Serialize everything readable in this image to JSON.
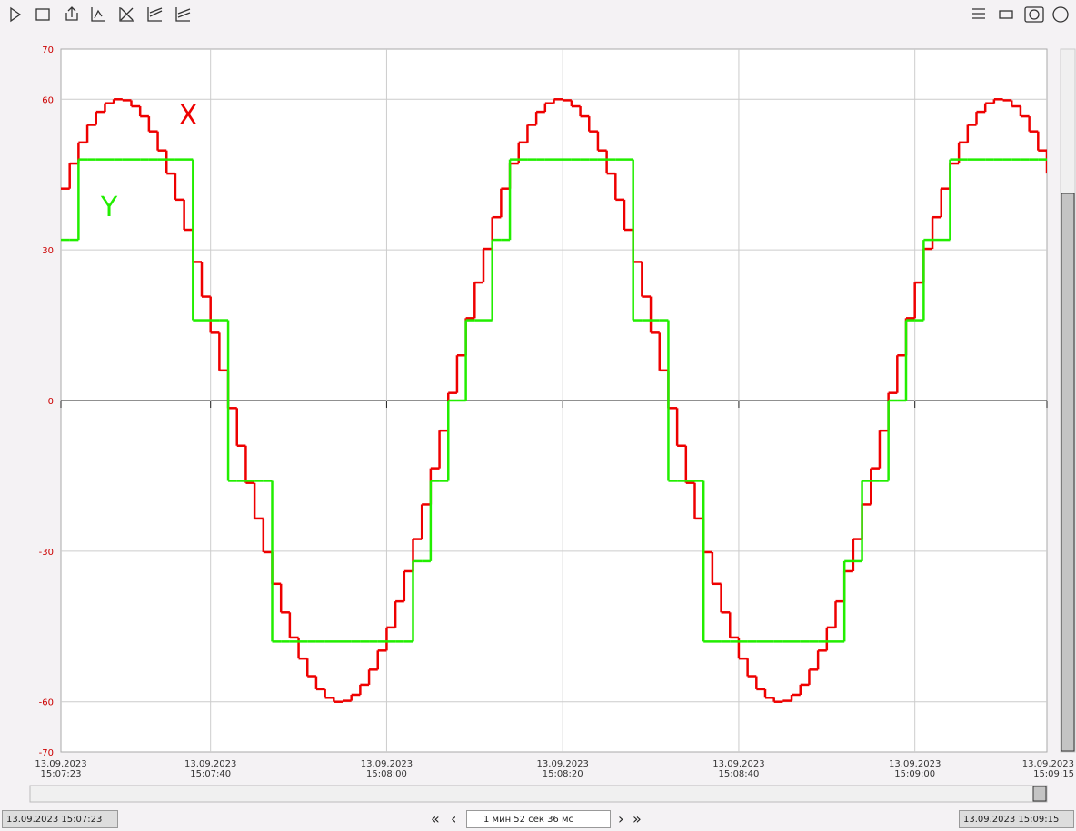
{
  "chart_data": {
    "type": "step-line",
    "x": [
      0,
      1,
      2,
      3,
      4,
      5,
      6,
      7,
      8,
      9,
      10,
      11,
      12,
      13,
      14,
      15,
      16,
      17,
      18,
      19,
      20,
      21,
      22,
      23,
      24,
      25,
      26,
      27,
      28,
      29,
      30,
      31,
      32,
      33,
      34,
      35,
      36,
      37,
      38,
      39,
      40,
      41,
      42,
      43,
      44,
      45,
      46,
      47,
      48,
      49,
      50,
      51,
      52,
      53,
      54,
      55,
      56,
      57,
      58,
      59,
      60,
      61,
      62,
      63,
      64,
      65,
      66,
      67,
      68,
      69,
      70,
      71,
      72,
      73,
      74,
      75,
      76,
      77,
      78,
      79,
      80,
      81,
      82,
      83,
      84,
      85,
      86,
      87,
      88,
      89,
      90,
      91,
      92,
      93,
      94,
      95,
      96,
      97,
      98,
      99,
      100,
      101,
      102,
      103,
      104,
      105,
      106,
      107,
      108,
      109,
      110,
      111,
      112
    ],
    "series": [
      {
        "name": "X",
        "color": "#ee0000",
        "values": [
          42.2,
          47.2,
          51.4,
          54.9,
          57.5,
          59.2,
          60,
          59.8,
          58.6,
          56.6,
          53.6,
          49.8,
          45.2,
          40,
          34,
          27.6,
          20.7,
          13.5,
          6,
          -1.5,
          -9,
          -16.4,
          -23.5,
          -30.2,
          -36.5,
          -42.2,
          -47.2,
          -51.4,
          -54.9,
          -57.5,
          -59.2,
          -60,
          -59.8,
          -58.6,
          -56.6,
          -53.6,
          -49.8,
          -45.2,
          -40,
          -34,
          -27.6,
          -20.7,
          -13.5,
          -6,
          1.5,
          9,
          16.4,
          23.5,
          30.2,
          36.5,
          42.2,
          47.2,
          51.4,
          54.9,
          57.5,
          59.2,
          60,
          59.8,
          58.6,
          56.6,
          53.6,
          49.8,
          45.2,
          40,
          34,
          27.6,
          20.7,
          13.5,
          6,
          -1.5,
          -9,
          -16.4,
          -23.5,
          -30.2,
          -36.5,
          -42.2,
          -47.2,
          -51.4,
          -54.9,
          -57.5,
          -59.2,
          -60,
          -59.8,
          -58.6,
          -56.6,
          -53.6,
          -49.8,
          -45.2,
          -40,
          -34,
          -27.6,
          -20.7,
          -13.5,
          -6,
          1.5,
          9,
          16.4,
          23.5,
          30.2,
          36.5,
          42.2,
          47.2,
          51.4,
          54.9,
          57.5,
          59.2,
          60,
          59.8,
          58.6,
          56.6,
          53.6,
          49.8,
          45.2
        ]
      },
      {
        "name": "Y",
        "color": "#22ee00",
        "values": [
          32,
          32,
          48,
          48,
          48,
          48,
          48,
          48,
          48,
          48,
          48,
          48,
          48,
          48,
          48,
          16,
          16,
          16,
          16,
          -16,
          -16,
          -16,
          -16,
          -16,
          -48,
          -48,
          -48,
          -48,
          -48,
          -48,
          -48,
          -48,
          -48,
          -48,
          -48,
          -48,
          -48,
          -48,
          -48,
          -48,
          -32,
          -32,
          -16,
          -16,
          0,
          0,
          16,
          16,
          16,
          32,
          32,
          48,
          48,
          48,
          48,
          48,
          48,
          48,
          48,
          48,
          48,
          48,
          48,
          48,
          48,
          16,
          16,
          16,
          16,
          -16,
          -16,
          -16,
          -16,
          -48,
          -48,
          -48,
          -48,
          -48,
          -48,
          -48,
          -48,
          -48,
          -48,
          -48,
          -48,
          -48,
          -48,
          -48,
          -48,
          -32,
          -32,
          -16,
          -16,
          -16,
          0,
          0,
          16,
          16,
          32,
          32,
          32,
          48,
          48,
          48,
          48,
          48,
          48,
          48,
          48,
          48,
          48,
          48,
          48
        ]
      }
    ],
    "xlim": [
      0,
      112
    ],
    "xticks": [
      {
        "value": 0,
        "label": "13.09.2023 15:07:23"
      },
      {
        "value": 17,
        "label": "13.09.2023 15:07:40"
      },
      {
        "value": 37,
        "label": "13.09.2023 15:08:00"
      },
      {
        "value": 57,
        "label": "13.09.2023 15:08:20"
      },
      {
        "value": 77,
        "label": "13.09.2023 15:08:40"
      },
      {
        "value": 97,
        "label": "13.09.2023 15:09:00"
      },
      {
        "value": 112,
        "label": "13.09.2023 15:09:15"
      }
    ],
    "ylim": [
      -70,
      70
    ],
    "yticks": [
      -70,
      -60,
      -30,
      0,
      30,
      60,
      70
    ],
    "grid": true
  },
  "footer": {
    "start": "13.09.2023 15:07:23",
    "period": "1 мин 52 сек 36 мс",
    "end": "13.09.2023 15:09:15"
  }
}
